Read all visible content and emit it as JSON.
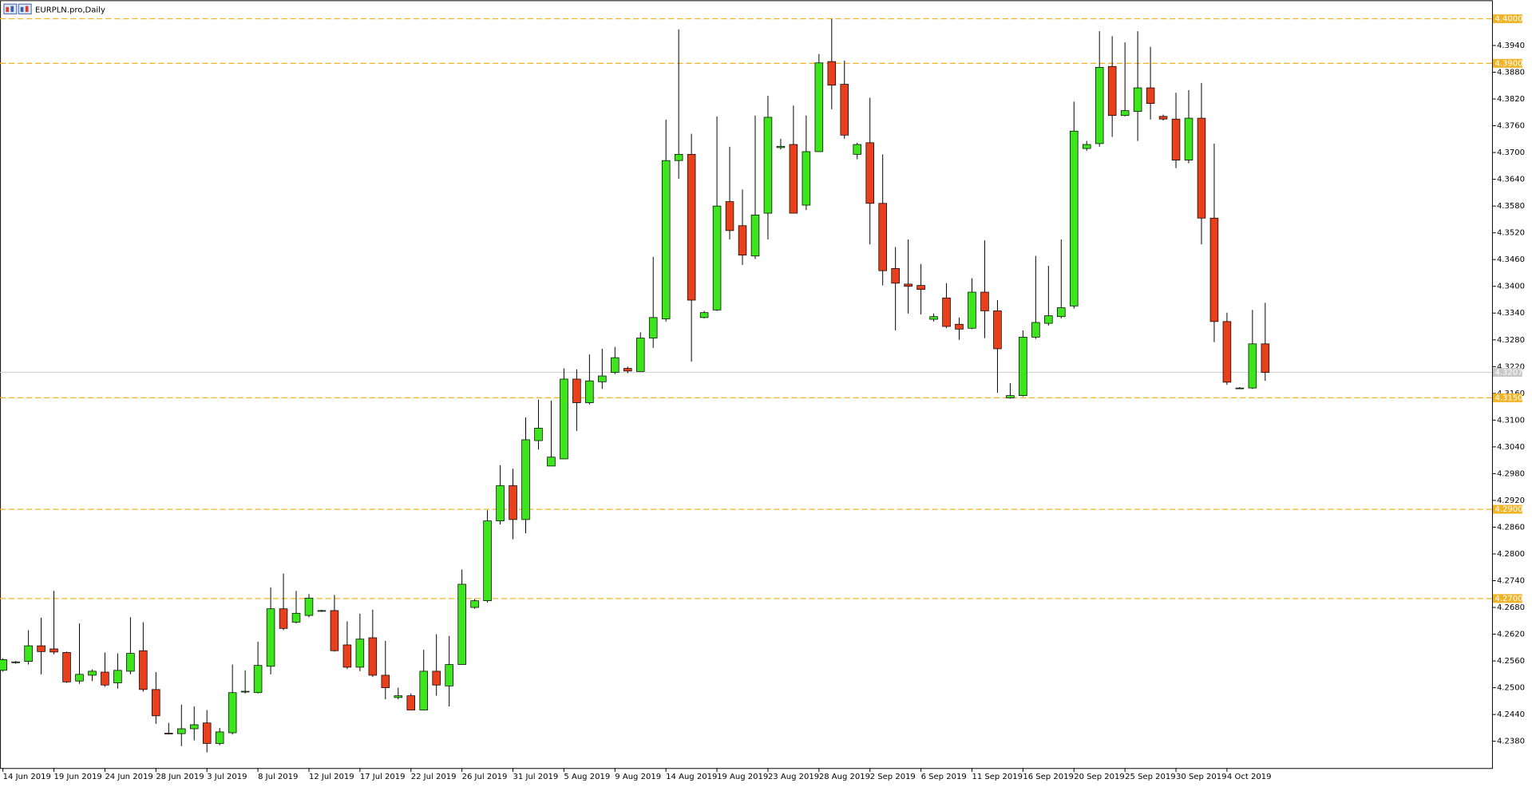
{
  "chart_data": {
    "type": "candlestick",
    "title": "EURPLN.pro,Daily",
    "categories": [
      "14 Jun 2019",
      null,
      null,
      null,
      "19 Jun 2019",
      null,
      null,
      null,
      "24 Jun 2019",
      null,
      null,
      null,
      "28 Jun 2019",
      null,
      null,
      null,
      "3 Jul 2019",
      null,
      null,
      null,
      "8 Jul 2019",
      null,
      null,
      null,
      "12 Jul 2019",
      null,
      null,
      null,
      "17 Jul 2019",
      null,
      null,
      null,
      "22 Jul 2019",
      null,
      null,
      null,
      "26 Jul 2019",
      null,
      null,
      null,
      "31 Jul 2019",
      null,
      null,
      null,
      "5 Aug 2019",
      null,
      null,
      null,
      "9 Aug 2019",
      null,
      null,
      null,
      "14 Aug 2019",
      null,
      null,
      null,
      "19 Aug 2019",
      null,
      null,
      null,
      "23 Aug 2019",
      null,
      null,
      null,
      "28 Aug 2019",
      null,
      null,
      null,
      "2 Sep 2019",
      null,
      null,
      null,
      "6 Sep 2019",
      null,
      null,
      null,
      "11 Sep 2019",
      null,
      null,
      null,
      "16 Sep 2019",
      null,
      null,
      null,
      "20 Sep 2019",
      null,
      null,
      null,
      "25 Sep 2019",
      null,
      null,
      null,
      "30 Sep 2019",
      null,
      null,
      null,
      "4 Oct 2019",
      null,
      null,
      null
    ],
    "open": [
      4.2539,
      4.2556,
      4.2559,
      4.2594,
      4.2587,
      4.2579,
      4.2515,
      4.2528,
      4.2535,
      4.2511,
      4.2537,
      4.2583,
      4.2496,
      4.2398,
      4.2397,
      4.2408,
      4.2421,
      4.2375,
      4.2399,
      4.2491,
      4.2489,
      4.2548,
      4.2677,
      4.2647,
      4.2662,
      4.2672,
      4.2673,
      4.2596,
      4.2546,
      4.2612,
      4.2528,
      4.2478,
      4.2482,
      4.245,
      4.2537,
      4.2504,
      4.2552,
      4.268,
      4.2695,
      4.2874,
      4.2953,
      4.2877,
      4.3054,
      4.2997,
      4.3013,
      4.3192,
      4.3139,
      4.3186,
      4.3207,
      4.3216,
      4.3209,
      4.3284,
      4.3327,
      4.3682,
      4.3696,
      4.333,
      4.3347,
      4.359,
      4.3536,
      4.3468,
      4.3564,
      4.3711,
      4.3718,
      4.3582,
      4.3702,
      4.3904,
      4.3853,
      4.3696,
      4.3722,
      4.3586,
      4.344,
      4.3405,
      4.3402,
      4.3326,
      4.3374,
      4.3315,
      4.3306,
      4.3387,
      4.3345,
      4.315,
      4.3155,
      4.3286,
      4.3317,
      4.3332,
      4.3356,
      4.3709,
      4.372,
      4.3893,
      4.3783,
      4.3792,
      4.3845,
      4.3781,
      4.3775,
      4.3683,
      4.3777,
      4.3553,
      4.3321,
      4.3172,
      4.3172,
      4.3271
    ],
    "high": [
      4.2566,
      4.256,
      4.2629,
      4.2657,
      4.2717,
      4.2581,
      4.2644,
      4.2541,
      4.2579,
      4.2577,
      4.2658,
      4.2647,
      4.2535,
      4.2421,
      4.2462,
      4.2458,
      4.245,
      4.241,
      4.2552,
      4.2539,
      4.2603,
      4.2725,
      4.2756,
      4.2717,
      4.271,
      4.2675,
      4.2708,
      4.2649,
      4.2666,
      4.2675,
      4.2605,
      4.25,
      4.2487,
      4.2585,
      4.262,
      4.2616,
      4.2765,
      4.2699,
      4.2898,
      4.2999,
      4.2991,
      4.3106,
      4.3146,
      4.3144,
      4.3216,
      4.3214,
      4.3247,
      4.326,
      4.3264,
      4.322,
      4.3297,
      4.3466,
      4.3774,
      4.3976,
      4.3742,
      4.3345,
      4.3781,
      4.3713,
      4.3617,
      4.3783,
      4.3827,
      4.3731,
      4.3805,
      4.3783,
      4.3921,
      4.4,
      4.3906,
      4.3722,
      4.3823,
      4.3696,
      4.3488,
      4.3505,
      4.345,
      4.3339,
      4.3407,
      4.333,
      4.3418,
      4.3503,
      4.3369,
      4.3183,
      4.3301,
      4.3468,
      4.3446,
      4.3505,
      4.3814,
      4.3726,
      4.3972,
      4.3961,
      4.3947,
      4.3972,
      4.3937,
      4.3785,
      4.3834,
      4.384,
      4.3856,
      4.372,
      4.3341,
      4.3174,
      4.3347,
      4.3363
    ],
    "low": [
      4.2536,
      4.2554,
      4.2552,
      4.253,
      4.2575,
      4.2511,
      4.2509,
      4.2515,
      4.2502,
      4.2498,
      4.253,
      4.2491,
      4.2419,
      4.2395,
      4.2369,
      4.2382,
      4.2355,
      4.2371,
      4.2395,
      4.2487,
      4.2487,
      4.253,
      4.2629,
      4.2644,
      4.2658,
      4.267,
      4.2581,
      4.2542,
      4.2537,
      4.2524,
      4.2474,
      4.2474,
      4.245,
      4.245,
      4.2482,
      4.2458,
      4.2552,
      4.2677,
      4.2691,
      4.2866,
      4.2833,
      4.2846,
      4.3034,
      4.2997,
      4.3013,
      4.3076,
      4.3135,
      4.317,
      4.3203,
      4.3205,
      4.3209,
      4.3262,
      4.3321,
      4.3641,
      4.3231,
      4.3328,
      4.3345,
      4.3505,
      4.3448,
      4.3461,
      4.3505,
      4.3707,
      4.3564,
      4.3571,
      4.3702,
      4.3797,
      4.3731,
      4.3685,
      4.3494,
      4.3402,
      4.3301,
      4.3339,
      4.3337,
      4.3321,
      4.3306,
      4.328,
      4.3304,
      4.3284,
      4.3161,
      4.3148,
      4.3153,
      4.3282,
      4.3312,
      4.3328,
      4.335,
      4.3704,
      4.3713,
      4.3735,
      4.3781,
      4.3726,
      4.3774,
      4.3772,
      4.3665,
      4.3676,
      4.3494,
      4.3275,
      4.3179,
      4.317,
      4.317,
      4.3188
    ],
    "close": [
      4.2563,
      4.2558,
      4.2594,
      4.2581,
      4.258,
      4.2513,
      4.253,
      4.2537,
      4.2506,
      4.2539,
      4.2577,
      4.2496,
      4.2437,
      4.2397,
      4.2408,
      4.2417,
      4.2375,
      4.2401,
      4.2489,
      4.2492,
      4.255,
      4.2677,
      4.2633,
      4.2667,
      4.2701,
      4.2673,
      4.2583,
      4.2546,
      4.2609,
      4.2528,
      4.25,
      4.2482,
      4.245,
      4.2537,
      4.2506,
      4.2552,
      4.2732,
      4.2695,
      4.2874,
      4.2953,
      4.2877,
      4.3056,
      4.3082,
      4.3017,
      4.3192,
      4.3139,
      4.3188,
      4.3199,
      4.324,
      4.321,
      4.3284,
      4.333,
      4.3682,
      4.3696,
      4.3369,
      4.3341,
      4.358,
      4.3525,
      4.347,
      4.356,
      4.3779,
      4.3714,
      4.3564,
      4.3702,
      4.3901,
      4.3851,
      4.3739,
      4.3718,
      4.3586,
      4.3435,
      4.3407,
      4.34,
      4.3393,
      4.3332,
      4.331,
      4.3304,
      4.3387,
      4.3345,
      4.326,
      4.3155,
      4.3286,
      4.3319,
      4.3334,
      4.3352,
      4.3748,
      4.3718,
      4.3891,
      4.3783,
      4.3794,
      4.3845,
      4.381,
      4.3775,
      4.3683,
      4.3777,
      4.3553,
      4.3321,
      4.3185,
      4.3172,
      4.3271,
      4.3207
    ],
    "up_color": "#3ce51c",
    "down_color": "#e8401c",
    "ylim": [
      4.232,
      4.4035
    ],
    "yticks": [
      {
        "value": 4.394,
        "label": "4.3940"
      },
      {
        "value": 4.388,
        "label": "4.3880"
      },
      {
        "value": 4.382,
        "label": "4.3820"
      },
      {
        "value": 4.376,
        "label": "4.3760"
      },
      {
        "value": 4.37,
        "label": "4.3700"
      },
      {
        "value": 4.364,
        "label": "4.3640"
      },
      {
        "value": 4.358,
        "label": "4.3580"
      },
      {
        "value": 4.352,
        "label": "4.3520"
      },
      {
        "value": 4.346,
        "label": "4.3460"
      },
      {
        "value": 4.34,
        "label": "4.3400"
      },
      {
        "value": 4.334,
        "label": "4.3340"
      },
      {
        "value": 4.328,
        "label": "4.3280"
      },
      {
        "value": 4.322,
        "label": "4.3220"
      },
      {
        "value": 4.316,
        "label": "4.3160"
      },
      {
        "value": 4.31,
        "label": "4.3100"
      },
      {
        "value": 4.304,
        "label": "4.3040"
      },
      {
        "value": 4.298,
        "label": "4.2980"
      },
      {
        "value": 4.292,
        "label": "4.2920"
      },
      {
        "value": 4.286,
        "label": "4.2860"
      },
      {
        "value": 4.28,
        "label": "4.2800"
      },
      {
        "value": 4.274,
        "label": "4.2740"
      },
      {
        "value": 4.268,
        "label": "4.2680"
      },
      {
        "value": 4.262,
        "label": "4.2620"
      },
      {
        "value": 4.256,
        "label": "4.2560"
      },
      {
        "value": 4.25,
        "label": "4.2500"
      },
      {
        "value": 4.244,
        "label": "4.2440"
      },
      {
        "value": 4.238,
        "label": "4.2380"
      }
    ],
    "levels": [
      {
        "value": 4.4,
        "label": "4.4000"
      },
      {
        "value": 4.39,
        "label": "4.3900"
      },
      {
        "value": 4.315,
        "label": "4.3150"
      },
      {
        "value": 4.29,
        "label": "4.2900"
      },
      {
        "value": 4.27,
        "label": "4.2700"
      }
    ],
    "level_color": "#f0b429",
    "current_price": {
      "value": 4.3207,
      "label": "4.3207"
    },
    "current_color": "#c8c8c8"
  }
}
